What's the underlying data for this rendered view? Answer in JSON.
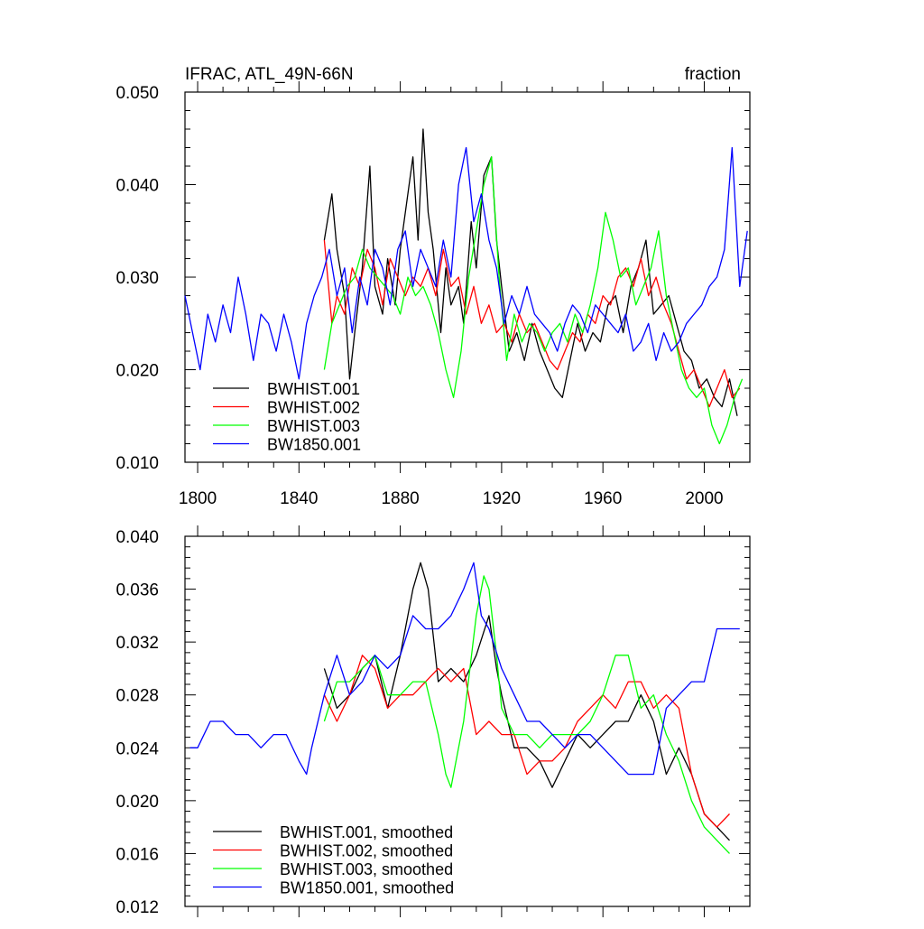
{
  "chart_data": [
    {
      "type": "line",
      "title_left": "IFRAC, ATL_49N-66N",
      "title_right": "fraction",
      "xlim": [
        1795,
        2018
      ],
      "ylim": [
        0.01,
        0.05
      ],
      "xticks": [
        {
          "value": 1800,
          "label": "1800"
        },
        {
          "value": 1840,
          "label": "1840"
        },
        {
          "value": 1880,
          "label": "1880"
        },
        {
          "value": 1920,
          "label": "1920"
        },
        {
          "value": 1960,
          "label": "1960"
        },
        {
          "value": 2000,
          "label": "2000"
        }
      ],
      "yticks": [
        {
          "value": 0.01,
          "label": "0.010"
        },
        {
          "value": 0.02,
          "label": "0.020"
        },
        {
          "value": 0.03,
          "label": "0.030"
        },
        {
          "value": 0.04,
          "label": "0.040"
        },
        {
          "value": 0.05,
          "label": "0.050"
        }
      ],
      "legend_position": "bottom-left",
      "series": [
        {
          "name": "BWHIST.001",
          "color": "#000000",
          "x": [
            1850,
            1853,
            1855,
            1858,
            1860,
            1862,
            1865,
            1868,
            1870,
            1873,
            1875,
            1878,
            1880,
            1883,
            1885,
            1887,
            1889,
            1891,
            1893,
            1896,
            1898,
            1900,
            1903,
            1905,
            1908,
            1910,
            1913,
            1916,
            1918,
            1920,
            1923,
            1926,
            1929,
            1932,
            1935,
            1938,
            1941,
            1944,
            1947,
            1950,
            1953,
            1956,
            1959,
            1962,
            1965,
            1968,
            1971,
            1974,
            1977,
            1980,
            1983,
            1986,
            1989,
            1992,
            1995,
            1998,
            2001,
            2004,
            2007,
            2010,
            2013
          ],
          "y": [
            0.034,
            0.039,
            0.033,
            0.028,
            0.019,
            0.024,
            0.031,
            0.042,
            0.029,
            0.026,
            0.032,
            0.027,
            0.033,
            0.039,
            0.043,
            0.034,
            0.046,
            0.037,
            0.033,
            0.024,
            0.031,
            0.027,
            0.029,
            0.025,
            0.036,
            0.031,
            0.041,
            0.043,
            0.034,
            0.029,
            0.022,
            0.024,
            0.021,
            0.025,
            0.022,
            0.02,
            0.018,
            0.017,
            0.021,
            0.025,
            0.022,
            0.024,
            0.023,
            0.027,
            0.028,
            0.024,
            0.029,
            0.031,
            0.034,
            0.026,
            0.027,
            0.028,
            0.025,
            0.022,
            0.021,
            0.018,
            0.019,
            0.017,
            0.016,
            0.019,
            0.015
          ]
        },
        {
          "name": "BWHIST.002",
          "color": "#ff0000",
          "x": [
            1850,
            1853,
            1855,
            1858,
            1861,
            1864,
            1867,
            1870,
            1873,
            1876,
            1879,
            1882,
            1885,
            1888,
            1891,
            1894,
            1897,
            1900,
            1903,
            1906,
            1909,
            1912,
            1915,
            1918,
            1921,
            1924,
            1927,
            1930,
            1933,
            1936,
            1939,
            1942,
            1945,
            1948,
            1951,
            1954,
            1957,
            1960,
            1963,
            1966,
            1969,
            1972,
            1975,
            1978,
            1981,
            1984,
            1987,
            1990,
            1993,
            1996,
            1999,
            2002,
            2005,
            2008,
            2011,
            2014
          ],
          "y": [
            0.034,
            0.025,
            0.028,
            0.026,
            0.031,
            0.029,
            0.033,
            0.031,
            0.027,
            0.032,
            0.03,
            0.028,
            0.03,
            0.029,
            0.031,
            0.028,
            0.033,
            0.029,
            0.03,
            0.026,
            0.029,
            0.025,
            0.027,
            0.024,
            0.025,
            0.023,
            0.026,
            0.024,
            0.025,
            0.023,
            0.021,
            0.02,
            0.022,
            0.024,
            0.023,
            0.026,
            0.025,
            0.028,
            0.027,
            0.03,
            0.031,
            0.029,
            0.032,
            0.028,
            0.03,
            0.027,
            0.025,
            0.022,
            0.019,
            0.02,
            0.018,
            0.016,
            0.018,
            0.02,
            0.017,
            0.018
          ]
        },
        {
          "name": "BWHIST.003",
          "color": "#00ff00",
          "x": [
            1850,
            1853,
            1856,
            1859,
            1862,
            1865,
            1868,
            1871,
            1874,
            1877,
            1880,
            1883,
            1886,
            1889,
            1892,
            1895,
            1898,
            1901,
            1904,
            1907,
            1910,
            1913,
            1916,
            1919,
            1922,
            1925,
            1928,
            1931,
            1934,
            1937,
            1940,
            1943,
            1946,
            1949,
            1952,
            1955,
            1958,
            1961,
            1964,
            1967,
            1970,
            1973,
            1976,
            1979,
            1982,
            1985,
            1988,
            1991,
            1994,
            1997,
            2000,
            2003,
            2006,
            2009,
            2012,
            2015
          ],
          "y": [
            0.02,
            0.025,
            0.027,
            0.029,
            0.03,
            0.033,
            0.031,
            0.03,
            0.029,
            0.028,
            0.026,
            0.03,
            0.028,
            0.029,
            0.027,
            0.024,
            0.02,
            0.017,
            0.022,
            0.03,
            0.035,
            0.04,
            0.043,
            0.03,
            0.021,
            0.026,
            0.023,
            0.025,
            0.024,
            0.022,
            0.024,
            0.025,
            0.023,
            0.026,
            0.024,
            0.027,
            0.031,
            0.037,
            0.034,
            0.03,
            0.031,
            0.027,
            0.029,
            0.031,
            0.035,
            0.028,
            0.024,
            0.02,
            0.018,
            0.017,
            0.018,
            0.014,
            0.012,
            0.014,
            0.017,
            0.019
          ]
        },
        {
          "name": "BW1850.001",
          "color": "#0000ff",
          "x": [
            1795,
            1798,
            1801,
            1804,
            1807,
            1810,
            1813,
            1816,
            1819,
            1822,
            1825,
            1828,
            1831,
            1834,
            1837,
            1840,
            1843,
            1846,
            1849,
            1852,
            1855,
            1858,
            1861,
            1864,
            1867,
            1870,
            1873,
            1876,
            1879,
            1882,
            1885,
            1888,
            1891,
            1894,
            1897,
            1900,
            1903,
            1906,
            1909,
            1912,
            1915,
            1918,
            1921,
            1924,
            1927,
            1930,
            1933,
            1936,
            1939,
            1942,
            1945,
            1948,
            1951,
            1954,
            1957,
            1960,
            1963,
            1966,
            1969,
            1972,
            1975,
            1978,
            1981,
            1984,
            1987,
            1990,
            1993,
            1996,
            1999,
            2002,
            2005,
            2008,
            2011,
            2014,
            2017
          ],
          "y": [
            0.028,
            0.024,
            0.02,
            0.026,
            0.023,
            0.027,
            0.024,
            0.03,
            0.026,
            0.021,
            0.026,
            0.025,
            0.022,
            0.026,
            0.023,
            0.019,
            0.025,
            0.028,
            0.03,
            0.033,
            0.028,
            0.031,
            0.024,
            0.03,
            0.027,
            0.033,
            0.031,
            0.027,
            0.033,
            0.035,
            0.029,
            0.033,
            0.031,
            0.029,
            0.034,
            0.03,
            0.04,
            0.044,
            0.036,
            0.039,
            0.034,
            0.031,
            0.025,
            0.028,
            0.026,
            0.029,
            0.026,
            0.025,
            0.024,
            0.022,
            0.025,
            0.027,
            0.026,
            0.024,
            0.027,
            0.026,
            0.025,
            0.024,
            0.026,
            0.022,
            0.023,
            0.025,
            0.021,
            0.024,
            0.022,
            0.023,
            0.025,
            0.026,
            0.027,
            0.029,
            0.03,
            0.033,
            0.044,
            0.029,
            0.035
          ]
        }
      ],
      "legend": [
        "BWHIST.001",
        "BWHIST.002",
        "BWHIST.003",
        "BW1850.001"
      ]
    },
    {
      "type": "line",
      "xlim": [
        1795,
        2018
      ],
      "ylim": [
        0.012,
        0.04
      ],
      "yticks": [
        {
          "value": 0.012,
          "label": "0.012"
        },
        {
          "value": 0.016,
          "label": "0.016"
        },
        {
          "value": 0.02,
          "label": "0.020"
        },
        {
          "value": 0.024,
          "label": "0.024"
        },
        {
          "value": 0.028,
          "label": "0.028"
        },
        {
          "value": 0.032,
          "label": "0.032"
        },
        {
          "value": 0.036,
          "label": "0.036"
        },
        {
          "value": 0.04,
          "label": "0.040"
        }
      ],
      "xtick_values": [
        1800,
        1840,
        1880,
        1920,
        1960,
        2000
      ],
      "legend_position": "bottom-left",
      "series": [
        {
          "name": "BWHIST.001, smoothed",
          "color": "#000000",
          "x": [
            1850,
            1855,
            1860,
            1865,
            1870,
            1875,
            1880,
            1885,
            1888,
            1891,
            1895,
            1900,
            1905,
            1910,
            1915,
            1918,
            1920,
            1925,
            1930,
            1935,
            1940,
            1945,
            1950,
            1955,
            1960,
            1965,
            1970,
            1975,
            1980,
            1985,
            1990,
            1995,
            2000,
            2005,
            2010
          ],
          "y": [
            0.03,
            0.027,
            0.028,
            0.03,
            0.031,
            0.027,
            0.031,
            0.036,
            0.038,
            0.036,
            0.029,
            0.03,
            0.029,
            0.031,
            0.034,
            0.03,
            0.028,
            0.024,
            0.024,
            0.023,
            0.021,
            0.023,
            0.025,
            0.024,
            0.025,
            0.026,
            0.026,
            0.028,
            0.026,
            0.022,
            0.024,
            0.022,
            0.019,
            0.018,
            0.017
          ]
        },
        {
          "name": "BWHIST.002, smoothed",
          "color": "#ff0000",
          "x": [
            1850,
            1855,
            1860,
            1865,
            1870,
            1875,
            1880,
            1885,
            1890,
            1895,
            1900,
            1905,
            1910,
            1915,
            1920,
            1925,
            1930,
            1935,
            1940,
            1945,
            1950,
            1955,
            1960,
            1965,
            1970,
            1975,
            1980,
            1985,
            1990,
            1995,
            2000,
            2005,
            2010
          ],
          "y": [
            0.028,
            0.026,
            0.028,
            0.031,
            0.03,
            0.027,
            0.028,
            0.028,
            0.029,
            0.03,
            0.029,
            0.03,
            0.025,
            0.026,
            0.025,
            0.025,
            0.022,
            0.023,
            0.023,
            0.024,
            0.026,
            0.027,
            0.028,
            0.027,
            0.029,
            0.029,
            0.027,
            0.028,
            0.027,
            0.022,
            0.019,
            0.018,
            0.019
          ]
        },
        {
          "name": "BWHIST.003, smoothed",
          "color": "#00ff00",
          "x": [
            1850,
            1855,
            1860,
            1865,
            1870,
            1875,
            1880,
            1885,
            1890,
            1895,
            1898,
            1900,
            1905,
            1910,
            1913,
            1915,
            1918,
            1920,
            1925,
            1930,
            1935,
            1940,
            1945,
            1950,
            1955,
            1960,
            1965,
            1970,
            1975,
            1980,
            1985,
            1990,
            1995,
            2000,
            2005,
            2010
          ],
          "y": [
            0.026,
            0.029,
            0.029,
            0.03,
            0.031,
            0.028,
            0.028,
            0.029,
            0.029,
            0.025,
            0.022,
            0.021,
            0.026,
            0.034,
            0.037,
            0.036,
            0.031,
            0.027,
            0.025,
            0.025,
            0.024,
            0.025,
            0.025,
            0.025,
            0.026,
            0.028,
            0.031,
            0.031,
            0.027,
            0.028,
            0.025,
            0.023,
            0.02,
            0.018,
            0.017,
            0.016
          ]
        },
        {
          "name": "BW1850.001, smoothed",
          "color": "#0000ff",
          "x": [
            1797,
            1800,
            1805,
            1810,
            1815,
            1820,
            1825,
            1830,
            1835,
            1840,
            1843,
            1845,
            1850,
            1855,
            1860,
            1865,
            1870,
            1875,
            1880,
            1885,
            1890,
            1895,
            1900,
            1905,
            1909,
            1912,
            1915,
            1920,
            1925,
            1930,
            1935,
            1940,
            1945,
            1950,
            1955,
            1960,
            1965,
            1970,
            1975,
            1980,
            1985,
            1990,
            1995,
            2000,
            2005,
            2010,
            2014
          ],
          "y": [
            0.024,
            0.024,
            0.026,
            0.026,
            0.025,
            0.025,
            0.024,
            0.025,
            0.025,
            0.023,
            0.022,
            0.024,
            0.028,
            0.031,
            0.028,
            0.029,
            0.031,
            0.03,
            0.031,
            0.034,
            0.033,
            0.033,
            0.034,
            0.036,
            0.038,
            0.034,
            0.033,
            0.03,
            0.028,
            0.026,
            0.026,
            0.025,
            0.024,
            0.025,
            0.025,
            0.024,
            0.023,
            0.022,
            0.022,
            0.022,
            0.027,
            0.028,
            0.029,
            0.029,
            0.033,
            0.033,
            0.033
          ]
        }
      ],
      "legend": [
        "BWHIST.001, smoothed",
        "BWHIST.002, smoothed",
        "BWHIST.003, smoothed",
        "BW1850.001, smoothed"
      ]
    }
  ]
}
